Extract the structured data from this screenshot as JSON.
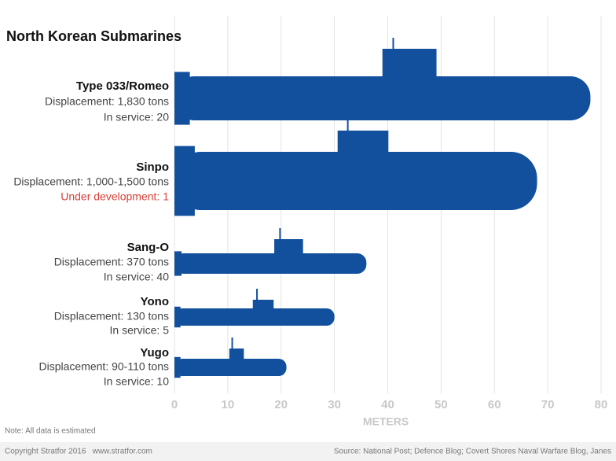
{
  "chart_data": {
    "type": "bar",
    "orientation": "horizontal",
    "title": "North Korean Submarines",
    "categories": [
      "Type 033/Romeo",
      "Sinpo",
      "Sang-O",
      "Yono",
      "Yugo"
    ],
    "details": [
      [
        {
          "text": "Displacement: 1,830 tons",
          "color": "#444444"
        },
        {
          "text": "In service: 20",
          "color": "#444444"
        }
      ],
      [
        {
          "text": "Displacement: 1,000-1,500 tons",
          "color": "#444444"
        },
        {
          "text": "Under development: 1",
          "color": "#d9403a"
        }
      ],
      [
        {
          "text": "Displacement: 370 tons",
          "color": "#444444"
        },
        {
          "text": "In service: 40",
          "color": "#444444"
        }
      ],
      [
        {
          "text": "Displacement: 130 tons",
          "color": "#444444"
        },
        {
          "text": "In service: 5",
          "color": "#444444"
        }
      ],
      [
        {
          "text": "Displacement: 90-110 tons",
          "color": "#444444"
        },
        {
          "text": "In service: 10",
          "color": "#444444"
        }
      ]
    ],
    "values": [
      78,
      68,
      36,
      30,
      21
    ],
    "color": "#12509e",
    "xlim": [
      0,
      80
    ],
    "xticks": [
      0,
      10,
      20,
      30,
      40,
      50,
      60,
      70,
      80
    ],
    "xlabel": "METERS",
    "grid": true,
    "note": "Note: All data is estimated",
    "copyright": "Copyright Stratfor 2016   www.stratfor.com",
    "source": "Source: National Post; Defence Blog; Covert Shores Naval Warfare Blog, Janes"
  }
}
